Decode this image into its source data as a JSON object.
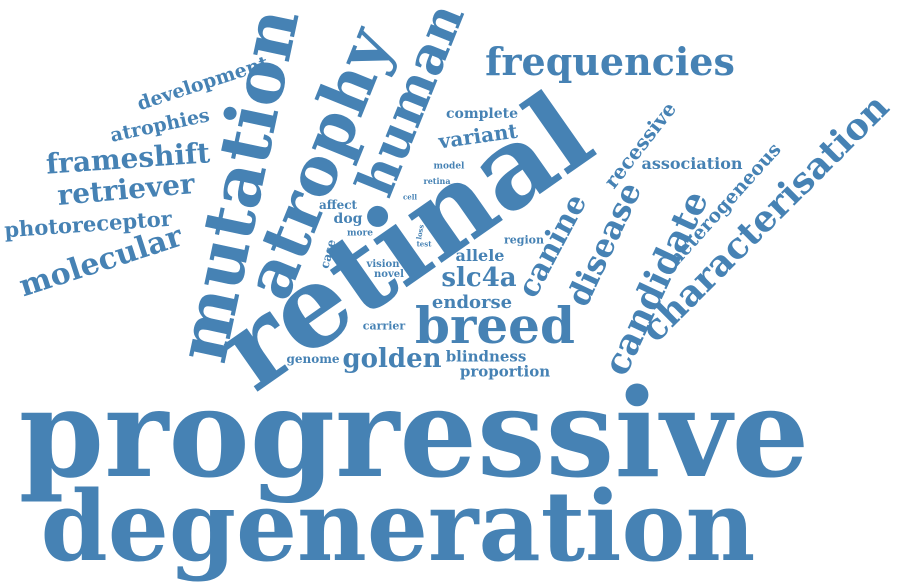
{
  "cloud": {
    "color": "#4682b4",
    "words": {
      "progressive": "progressive",
      "degeneration": "degeneration",
      "retinal": "retinal",
      "mutation": "mutation",
      "atrophy": "atrophy",
      "human": "human",
      "breed": "breed",
      "frequencies": "frequencies",
      "characterisation": "characterisation",
      "candidate": "candidate",
      "disease": "disease",
      "canine": "canine",
      "recessive": "recessive",
      "heterogeneous": "heterogeneous",
      "association": "association",
      "golden": "golden",
      "slc4a": "slc4a",
      "frameshift": "frameshift",
      "retriever": "retriever",
      "molecular": "molecular",
      "photoreceptor": "photoreceptor",
      "atrophies": "atrophies",
      "development": "development",
      "variant": "variant",
      "complete": "complete",
      "endorse": "endorse",
      "allele": "allele",
      "blindness": "blindness",
      "proportion": "proportion",
      "genome": "genome",
      "carrier": "carrier",
      "dog": "dog",
      "affect": "affect",
      "case": "case",
      "vision": "vision",
      "novel": "novel",
      "region": "region",
      "model": "model",
      "retina": "retina",
      "more": "more",
      "cell": "cell",
      "loss": "loss",
      "test": "test"
    }
  }
}
